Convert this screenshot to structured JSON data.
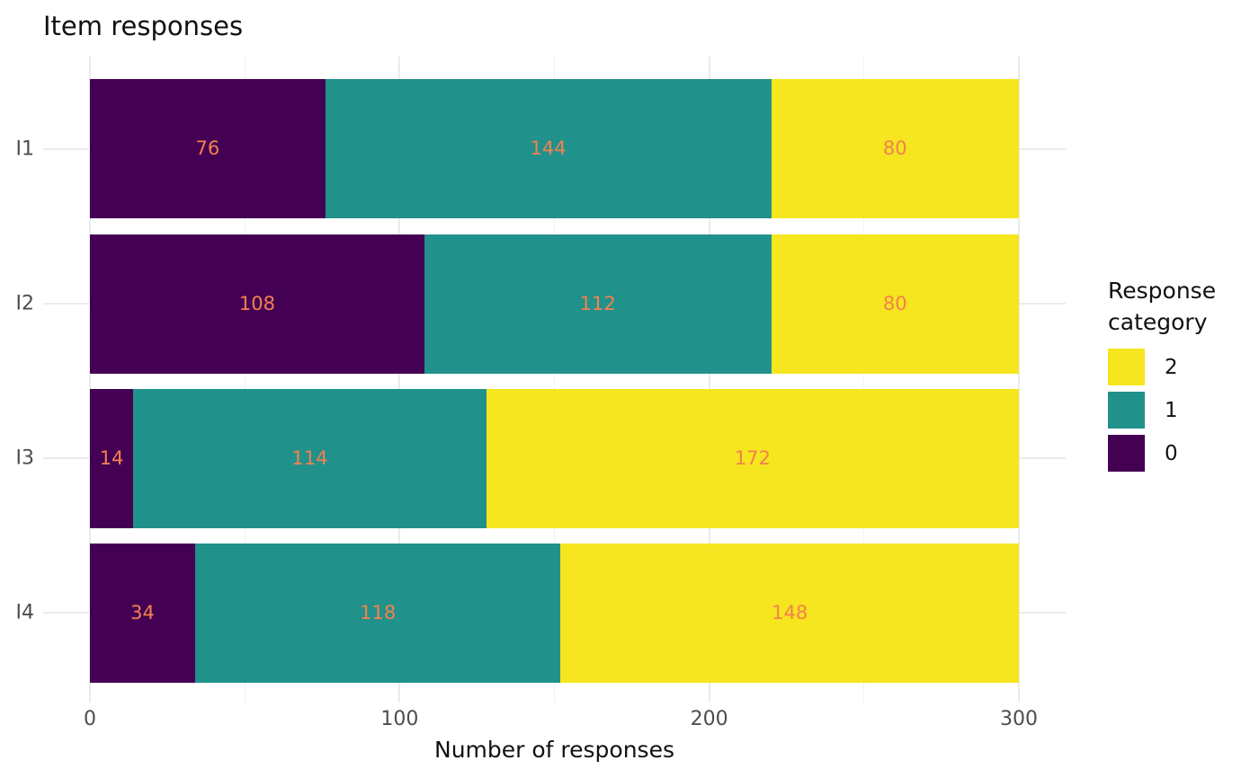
{
  "chart_data": {
    "type": "bar",
    "orientation": "horizontal",
    "stacked": true,
    "title": "Item responses",
    "xlabel": "Number of responses",
    "ylabel": "",
    "categories": [
      "I1",
      "I2",
      "I3",
      "I4"
    ],
    "series": [
      {
        "name": "0",
        "color": "#440154",
        "values": [
          76,
          108,
          14,
          34
        ]
      },
      {
        "name": "1",
        "color": "#21918c",
        "values": [
          144,
          112,
          114,
          118
        ]
      },
      {
        "name": "2",
        "color": "#f5e61f",
        "values": [
          80,
          80,
          172,
          148
        ]
      }
    ],
    "totals": [
      300,
      300,
      300,
      300
    ],
    "xlim": [
      0,
      300
    ],
    "x_ticks": [
      "0",
      "100",
      "200",
      "300"
    ],
    "x_tick_values": [
      0,
      100,
      200,
      300
    ],
    "x_minor_tick_values": [
      50,
      150,
      250
    ],
    "grid": "major-and-minor-vertical, category-horizontal",
    "bar_label_color": "#f4804e",
    "legend": {
      "title": "Response category",
      "position": "right",
      "entries": [
        {
          "label": "2",
          "color": "#f5e61f"
        },
        {
          "label": "1",
          "color": "#21918c"
        },
        {
          "label": "0",
          "color": "#440154"
        }
      ]
    },
    "colors": {
      "axis_text": "#4d4d4d",
      "title_text": "#111111",
      "grid_major": "#ebebeb",
      "grid_minor": "#f2f2f2",
      "background": "#ffffff"
    }
  }
}
